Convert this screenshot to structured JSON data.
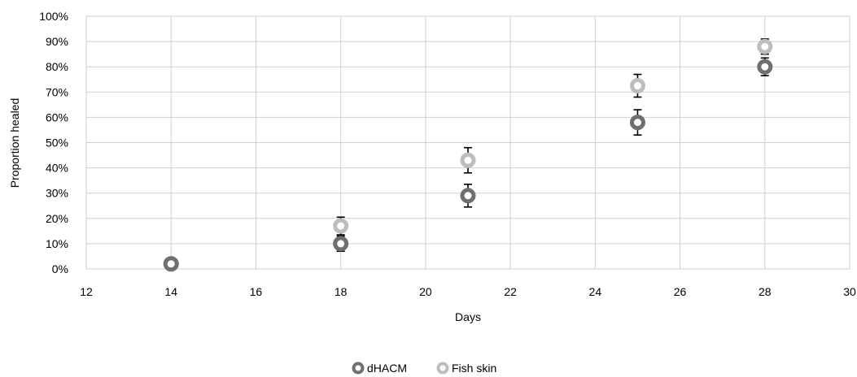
{
  "chart_data": {
    "type": "scatter",
    "title": "",
    "xlabel": "Days",
    "ylabel": "Proportion healed",
    "xlim": [
      12,
      30
    ],
    "ylim": [
      0,
      100
    ],
    "x_ticks": [
      12,
      14,
      16,
      18,
      20,
      22,
      24,
      26,
      28,
      30
    ],
    "y_ticks": [
      0,
      10,
      20,
      30,
      40,
      50,
      60,
      70,
      80,
      90,
      100
    ],
    "y_tick_labels": [
      "0%",
      "10%",
      "20%",
      "30%",
      "40%",
      "50%",
      "60%",
      "70%",
      "80%",
      "90%",
      "100%"
    ],
    "grid": true,
    "legend_position": "bottom-center",
    "series": [
      {
        "name": "dHACM",
        "color": "#6f6f6f",
        "points": [
          {
            "x": 14,
            "y": 2,
            "err": 0
          },
          {
            "x": 18,
            "y": 10,
            "err": 3
          },
          {
            "x": 21,
            "y": 29,
            "err": 4.5
          },
          {
            "x": 25,
            "y": 58,
            "err": 5
          },
          {
            "x": 28,
            "y": 80,
            "err": 3.5
          }
        ]
      },
      {
        "name": "Fish skin",
        "color": "#bdbdbd",
        "points": [
          {
            "x": 14,
            "y": 2,
            "err": 0
          },
          {
            "x": 18,
            "y": 17,
            "err": 3.5
          },
          {
            "x": 21,
            "y": 43,
            "err": 5
          },
          {
            "x": 25,
            "y": 72.5,
            "err": 4.5
          },
          {
            "x": 28,
            "y": 88,
            "err": 3
          }
        ]
      }
    ]
  }
}
